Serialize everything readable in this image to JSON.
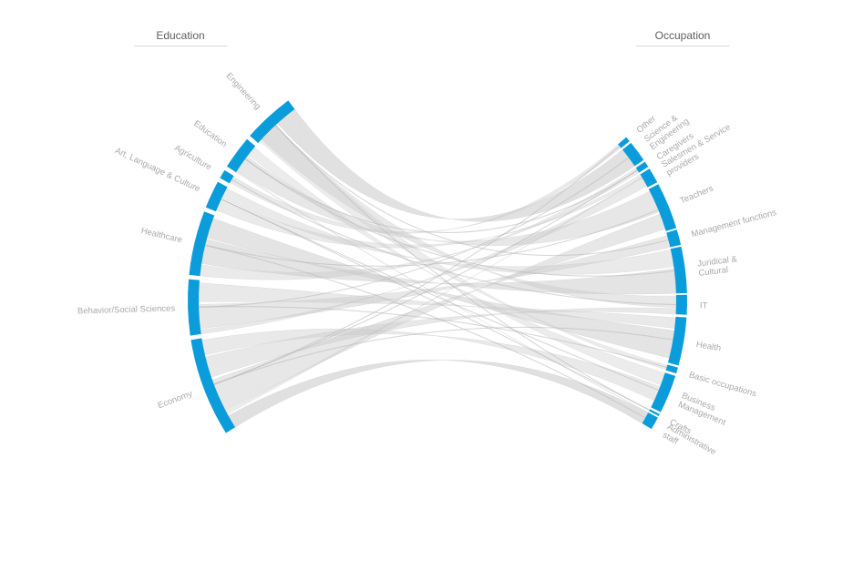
{
  "headers": {
    "left": "Education",
    "right": "Occupation"
  },
  "colors": {
    "arc": "#0b9ddb",
    "ribbon": "#c9c9c9",
    "label": "#a9a9a9"
  },
  "education": [
    "Economy",
    "Behavior/Social Sciences",
    "Healthcare",
    "Art, Language & Culture",
    "Agriculture",
    "Education",
    "Engineering"
  ],
  "occupation": [
    [
      "Administrative",
      "staff"
    ],
    [
      "Crafts"
    ],
    [
      "Business",
      "Management"
    ],
    [
      "Basic occupations"
    ],
    [
      "Health"
    ],
    [
      "IT"
    ],
    [
      "Juridical &",
      "Cultural"
    ],
    [
      "Management functions"
    ],
    [
      "Teachers"
    ],
    [
      "Salesmen & Service",
      "providers"
    ],
    [
      "Caregivers"
    ],
    [
      "Science &",
      "Engineering"
    ],
    [
      "Other"
    ]
  ]
}
